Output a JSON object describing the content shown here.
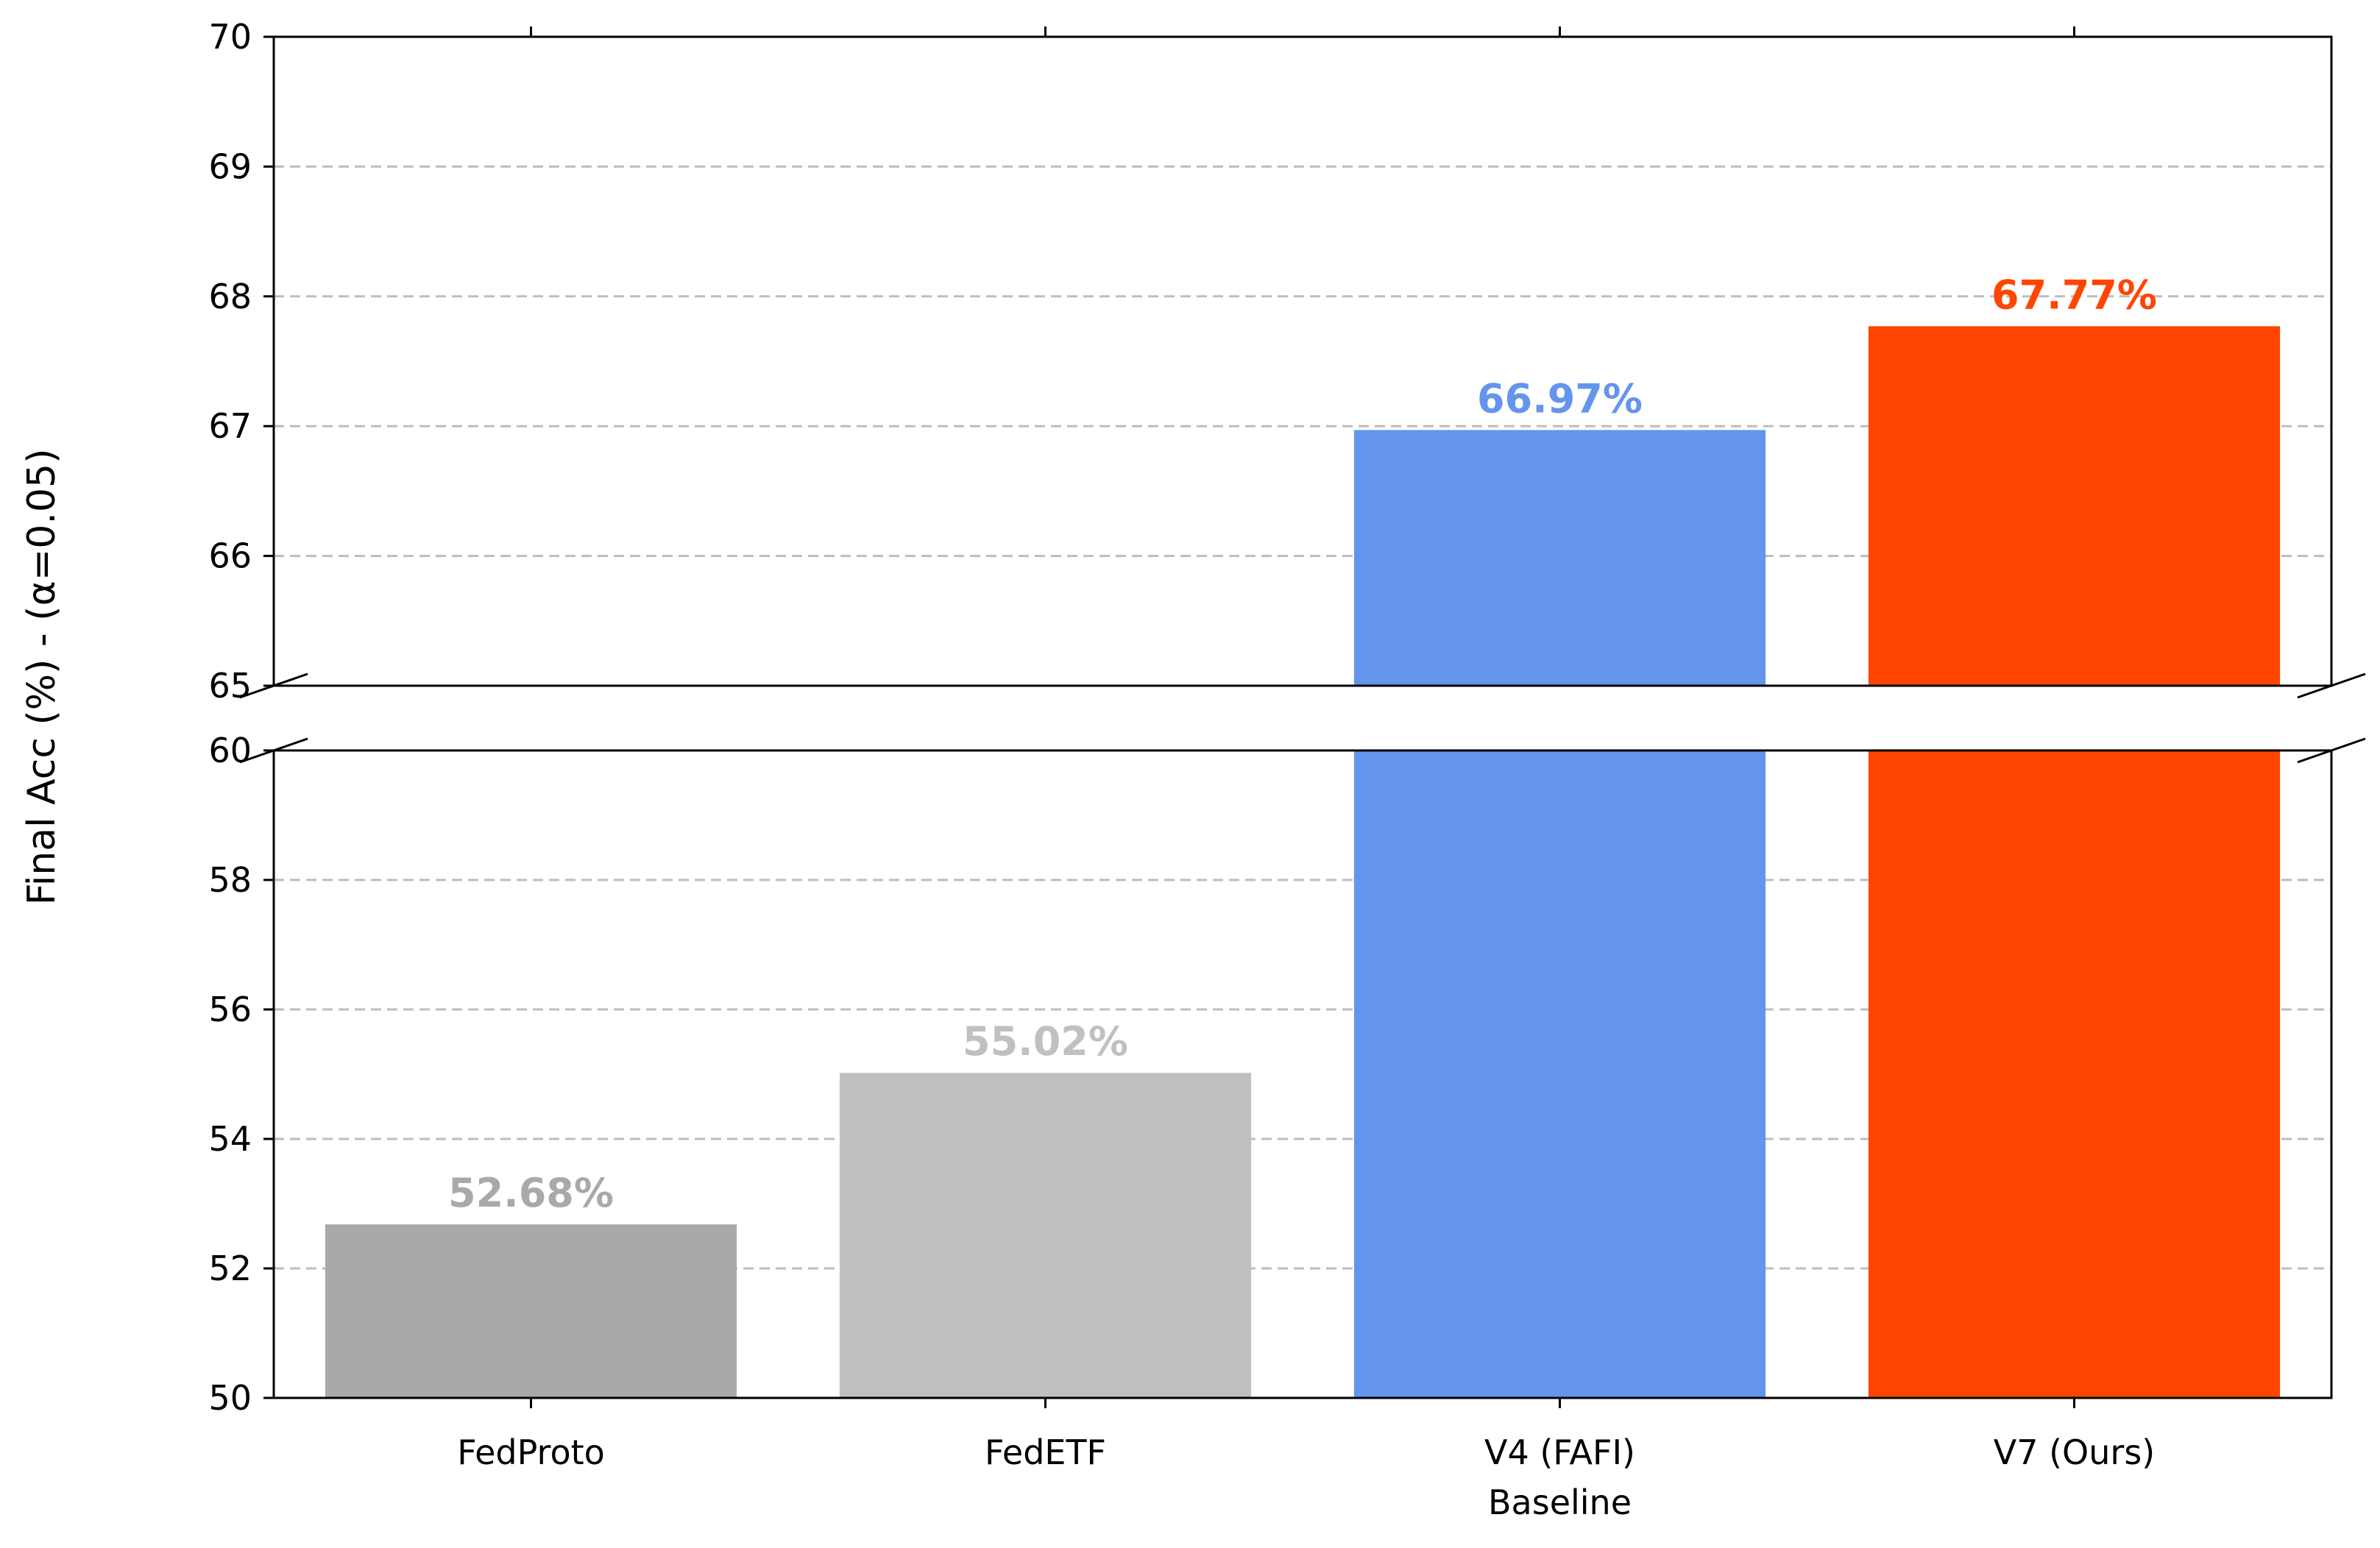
{
  "chart_data": {
    "type": "bar",
    "ylabel": "Final Acc (%) -  (α=0.05)",
    "categories": [
      [
        "FedProto"
      ],
      [
        "FedETF"
      ],
      [
        "V4 (FAFI)",
        "Baseline"
      ],
      [
        "V7 (Ours)"
      ]
    ],
    "values": [
      52.68,
      55.02,
      66.97,
      67.77
    ],
    "value_labels": [
      "52.68%",
      "55.02%",
      "66.97%",
      "67.77%"
    ],
    "colors": [
      "#a9a9a9",
      "#c0c0c0",
      "#6495ed",
      "#ff4500"
    ],
    "broken_axis": true,
    "lower_ylim": [
      50,
      60
    ],
    "upper_ylim": [
      65,
      70
    ],
    "lower_yticks": [
      "50",
      "52",
      "54",
      "56",
      "58",
      "60"
    ],
    "upper_yticks": [
      "65",
      "66",
      "67",
      "68",
      "69",
      "70"
    ],
    "grid": "y dashed"
  }
}
